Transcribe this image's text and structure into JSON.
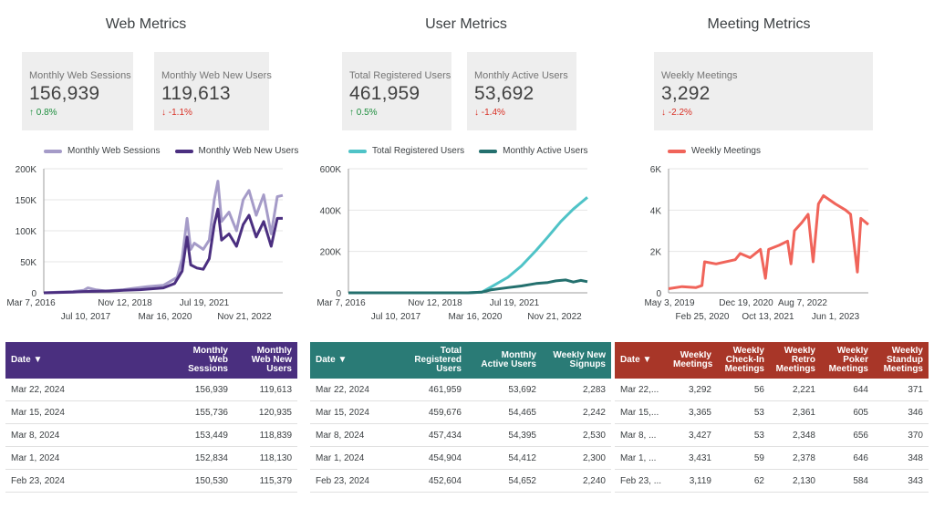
{
  "sections": {
    "web": {
      "title": "Web Metrics",
      "cards": [
        {
          "label": "Monthly Web Sessions",
          "value": "156,939",
          "change": "↑ 0.8%",
          "direction": "up"
        },
        {
          "label": "Monthly Web New Users",
          "value": "119,613",
          "change": "↓ -1.1%",
          "direction": "down"
        }
      ],
      "legend": [
        {
          "name": "Monthly Web Sessions",
          "color": "#a59bc8"
        },
        {
          "name": "Monthly Web New Users",
          "color": "#4b2f80"
        }
      ],
      "table": {
        "headers": [
          "Date ▼",
          "Monthly Web Sessions",
          "Monthly Web New Users"
        ],
        "rows": [
          [
            "Mar 22, 2024",
            "156,939",
            "119,613"
          ],
          [
            "Mar 15, 2024",
            "155,736",
            "120,935"
          ],
          [
            "Mar 8, 2024",
            "153,449",
            "118,839"
          ],
          [
            "Mar 1, 2024",
            "152,834",
            "118,130"
          ],
          [
            "Feb 23, 2024",
            "150,530",
            "115,379"
          ]
        ]
      }
    },
    "user": {
      "title": "User Metrics",
      "cards": [
        {
          "label": "Total Registered Users",
          "value": "461,959",
          "change": "↑ 0.5%",
          "direction": "up"
        },
        {
          "label": "Monthly Active Users",
          "value": "53,692",
          "change": "↓ -1.4%",
          "direction": "down"
        }
      ],
      "legend": [
        {
          "name": "Total Registered Users",
          "color": "#4fc3c7"
        },
        {
          "name": "Monthly Active Users",
          "color": "#24706e"
        }
      ],
      "table": {
        "headers": [
          "Date ▼",
          "Total Registered Users",
          "Monthly Active Users",
          "Weekly New Signups"
        ],
        "rows": [
          [
            "Mar 22, 2024",
            "461,959",
            "53,692",
            "2,283"
          ],
          [
            "Mar 15, 2024",
            "459,676",
            "54,465",
            "2,242"
          ],
          [
            "Mar 8, 2024",
            "457,434",
            "54,395",
            "2,530"
          ],
          [
            "Mar 1, 2024",
            "454,904",
            "54,412",
            "2,300"
          ],
          [
            "Feb 23, 2024",
            "452,604",
            "54,652",
            "2,240"
          ]
        ]
      }
    },
    "meeting": {
      "title": "Meeting Metrics",
      "cards": [
        {
          "label": "Weekly Meetings",
          "value": "3,292",
          "change": "↓ -2.2%",
          "direction": "down"
        }
      ],
      "legend": [
        {
          "name": "Weekly Meetings",
          "color": "#f0645a"
        }
      ],
      "table": {
        "headers": [
          "Date ▼",
          "Weekly Meetings",
          "Weekly Check-In Meetings",
          "Weekly Retro Meetings",
          "Weekly Poker Meetings",
          "Weekly Standup Meetings"
        ],
        "rows": [
          [
            "Mar 22,...",
            "3,292",
            "56",
            "2,221",
            "644",
            "371"
          ],
          [
            "Mar 15,...",
            "3,365",
            "53",
            "2,361",
            "605",
            "346"
          ],
          [
            "Mar 8, ...",
            "3,427",
            "53",
            "2,348",
            "656",
            "370"
          ],
          [
            "Mar 1, ...",
            "3,431",
            "59",
            "2,378",
            "646",
            "348"
          ],
          [
            "Feb 23, ...",
            "3,119",
            "62",
            "2,130",
            "584",
            "343"
          ]
        ]
      }
    }
  },
  "chart_data": [
    {
      "type": "line",
      "x_range": [
        "2016-03-07",
        "2024-03-22"
      ],
      "x_tick_labels_row1": [
        "Mar 7, 2016",
        "Nov 12, 2018",
        "Jul 19, 2021"
      ],
      "x_tick_labels_row2": [
        "Jul 10, 2017",
        "Mar 16, 2020",
        "Nov 21, 2022"
      ],
      "y_ticks": [
        "0",
        "50K",
        "100K",
        "150K",
        "200K"
      ],
      "ylim": [
        0,
        200000
      ],
      "grid": true,
      "legend_position": "top",
      "series": [
        {
          "name": "Monthly Web Sessions",
          "color": "#a59bc8",
          "points": [
            [
              "2016-03-07",
              0
            ],
            [
              "2016-09-01",
              1000
            ],
            [
              "2017-03-01",
              2000
            ],
            [
              "2017-07-10",
              4000
            ],
            [
              "2017-09-01",
              8000
            ],
            [
              "2017-12-01",
              5000
            ],
            [
              "2018-04-01",
              3000
            ],
            [
              "2018-11-12",
              5000
            ],
            [
              "2019-03-01",
              7000
            ],
            [
              "2019-09-01",
              10000
            ],
            [
              "2020-03-16",
              12000
            ],
            [
              "2020-06-01",
              18000
            ],
            [
              "2020-09-01",
              25000
            ],
            [
              "2020-11-01",
              55000
            ],
            [
              "2021-01-01",
              120000
            ],
            [
              "2021-02-15",
              70000
            ],
            [
              "2021-04-01",
              80000
            ],
            [
              "2021-07-19",
              70000
            ],
            [
              "2021-10-01",
              85000
            ],
            [
              "2021-12-01",
              150000
            ],
            [
              "2022-01-15",
              180000
            ],
            [
              "2022-03-01",
              115000
            ],
            [
              "2022-06-01",
              130000
            ],
            [
              "2022-09-01",
              100000
            ],
            [
              "2022-11-21",
              150000
            ],
            [
              "2023-02-01",
              165000
            ],
            [
              "2023-05-01",
              125000
            ],
            [
              "2023-08-01",
              158000
            ],
            [
              "2023-11-01",
              95000
            ],
            [
              "2024-01-15",
              155000
            ],
            [
              "2024-03-22",
              157000
            ]
          ]
        },
        {
          "name": "Monthly Web New Users",
          "color": "#4b2f80",
          "points": [
            [
              "2016-03-07",
              0
            ],
            [
              "2017-03-01",
              1000
            ],
            [
              "2017-07-10",
              2000
            ],
            [
              "2018-06-01",
              3000
            ],
            [
              "2018-11-12",
              4000
            ],
            [
              "2019-06-01",
              5000
            ],
            [
              "2020-03-16",
              8000
            ],
            [
              "2020-08-01",
              15000
            ],
            [
              "2020-11-01",
              35000
            ],
            [
              "2021-01-01",
              90000
            ],
            [
              "2021-02-15",
              45000
            ],
            [
              "2021-05-01",
              40000
            ],
            [
              "2021-07-19",
              38000
            ],
            [
              "2021-10-01",
              55000
            ],
            [
              "2021-12-01",
              110000
            ],
            [
              "2022-01-15",
              135000
            ],
            [
              "2022-03-01",
              85000
            ],
            [
              "2022-06-01",
              95000
            ],
            [
              "2022-09-01",
              75000
            ],
            [
              "2022-11-21",
              110000
            ],
            [
              "2023-02-01",
              125000
            ],
            [
              "2023-05-01",
              90000
            ],
            [
              "2023-08-01",
              115000
            ],
            [
              "2023-11-01",
              75000
            ],
            [
              "2024-01-15",
              120000
            ],
            [
              "2024-03-22",
              120000
            ]
          ]
        }
      ]
    },
    {
      "type": "line",
      "x_range": [
        "2016-03-07",
        "2024-03-22"
      ],
      "x_tick_labels_row1": [
        "Mar 7, 2016",
        "Nov 12, 2018",
        "Jul 19, 2021"
      ],
      "x_tick_labels_row2": [
        "Jul 10, 2017",
        "Mar 16, 2020",
        "Nov 21, 2022"
      ],
      "y_ticks": [
        "0",
        "200K",
        "400K",
        "600K"
      ],
      "ylim": [
        0,
        600000
      ],
      "grid": true,
      "legend_position": "top",
      "series": [
        {
          "name": "Total Registered Users",
          "color": "#4fc3c7",
          "points": [
            [
              "2016-03-07",
              0
            ],
            [
              "2020-03-16",
              0
            ],
            [
              "2020-09-01",
              3000
            ],
            [
              "2021-01-01",
              30000
            ],
            [
              "2021-07-19",
              75000
            ],
            [
              "2022-01-01",
              130000
            ],
            [
              "2022-07-01",
              205000
            ],
            [
              "2022-11-21",
              270000
            ],
            [
              "2023-05-01",
              345000
            ],
            [
              "2023-10-01",
              405000
            ],
            [
              "2024-03-22",
              462000
            ]
          ]
        },
        {
          "name": "Monthly Active Users",
          "color": "#24706e",
          "points": [
            [
              "2016-03-07",
              0
            ],
            [
              "2020-03-16",
              0
            ],
            [
              "2020-09-01",
              3000
            ],
            [
              "2021-01-01",
              15000
            ],
            [
              "2021-07-19",
              25000
            ],
            [
              "2022-01-01",
              33000
            ],
            [
              "2022-07-01",
              45000
            ],
            [
              "2022-11-21",
              50000
            ],
            [
              "2023-03-01",
              58000
            ],
            [
              "2023-07-01",
              62000
            ],
            [
              "2023-10-01",
              52000
            ],
            [
              "2024-01-01",
              60000
            ],
            [
              "2024-03-22",
              53700
            ]
          ]
        }
      ]
    },
    {
      "type": "line",
      "x_range": [
        "2019-05-03",
        "2024-03-22"
      ],
      "x_tick_labels_row1": [
        "May 3, 2019",
        "Dec 19, 2020",
        "Aug 7, 2022"
      ],
      "x_tick_labels_row2": [
        "Feb 25, 2020",
        "Oct 13, 2021",
        "Jun 1, 2023"
      ],
      "y_ticks": [
        "0",
        "2K",
        "4K",
        "6K"
      ],
      "ylim": [
        0,
        6000
      ],
      "grid": true,
      "legend_position": "top",
      "series": [
        {
          "name": "Weekly Meetings",
          "color": "#f0645a",
          "points": [
            [
              "2019-05-03",
              200
            ],
            [
              "2019-09-01",
              300
            ],
            [
              "2020-01-01",
              250
            ],
            [
              "2020-02-25",
              350
            ],
            [
              "2020-03-20",
              1500
            ],
            [
              "2020-07-01",
              1400
            ],
            [
              "2020-12-19",
              1600
            ],
            [
              "2021-02-01",
              1900
            ],
            [
              "2021-05-01",
              1700
            ],
            [
              "2021-08-01",
              2100
            ],
            [
              "2021-09-15",
              700
            ],
            [
              "2021-10-13",
              2100
            ],
            [
              "2022-01-15",
              2300
            ],
            [
              "2022-04-01",
              2500
            ],
            [
              "2022-05-01",
              1400
            ],
            [
              "2022-06-01",
              3000
            ],
            [
              "2022-08-07",
              3400
            ],
            [
              "2022-10-01",
              3800
            ],
            [
              "2022-11-15",
              1500
            ],
            [
              "2023-01-01",
              4300
            ],
            [
              "2023-02-15",
              4700
            ],
            [
              "2023-06-01",
              4300
            ],
            [
              "2023-09-01",
              4000
            ],
            [
              "2023-10-15",
              3800
            ],
            [
              "2023-12-15",
              1000
            ],
            [
              "2024-01-15",
              3600
            ],
            [
              "2024-03-22",
              3300
            ]
          ]
        }
      ]
    }
  ]
}
